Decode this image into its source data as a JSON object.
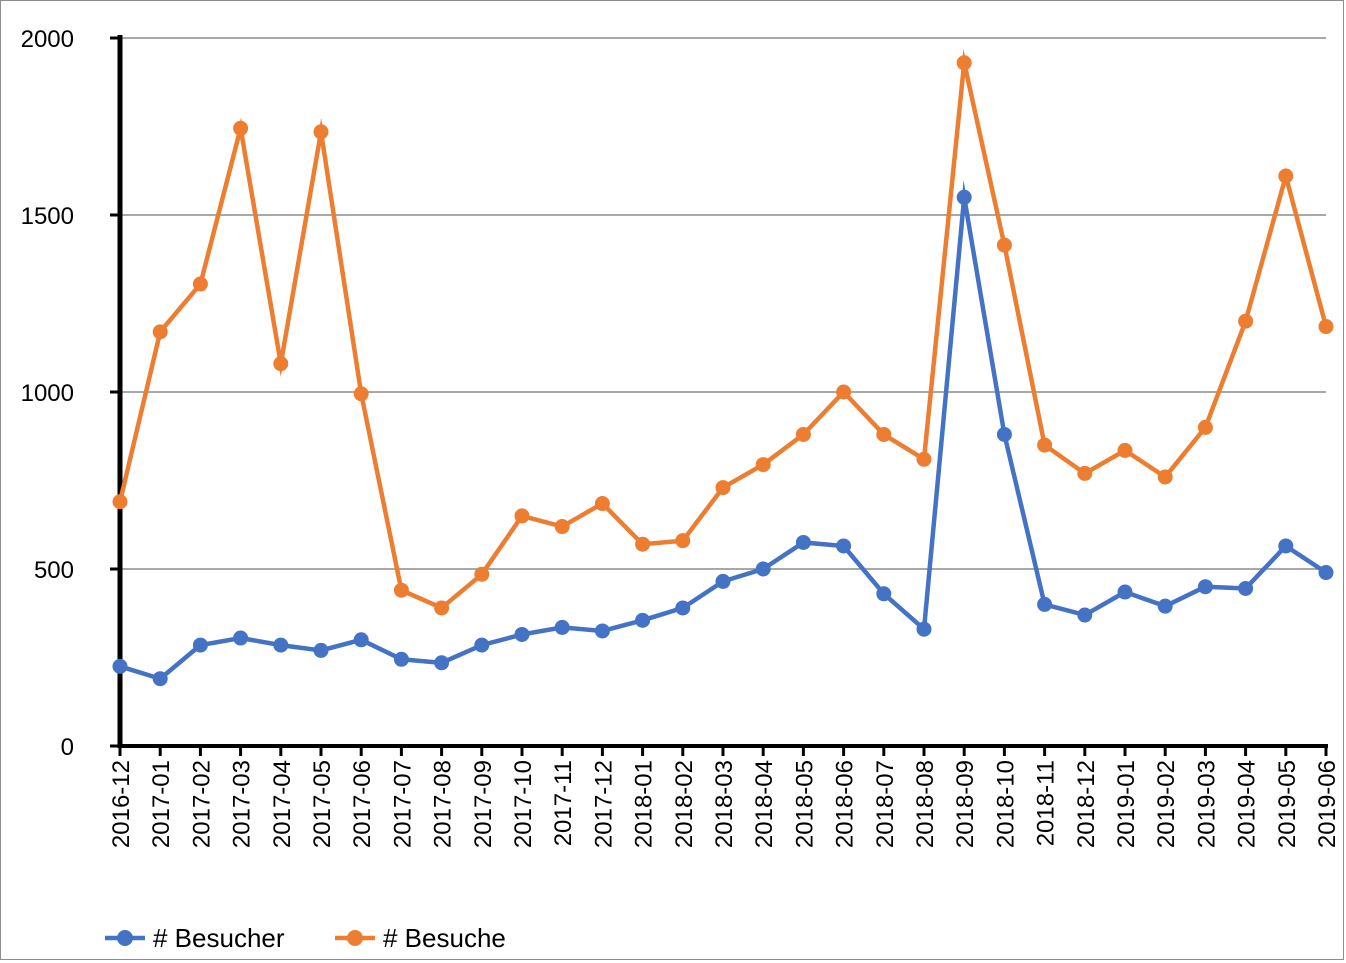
{
  "chart_data": {
    "type": "line",
    "title": "",
    "xlabel": "",
    "ylabel": "",
    "categories": [
      "2016-12",
      "2017-01",
      "2017-02",
      "2017-03",
      "2017-04",
      "2017-05",
      "2017-06",
      "2017-07",
      "2017-08",
      "2017-09",
      "2017-10",
      "2017-11",
      "2017-12",
      "2018-01",
      "2018-02",
      "2018-03",
      "2018-04",
      "2018-05",
      "2018-06",
      "2018-07",
      "2018-08",
      "2018-09",
      "2018-10",
      "2018-11",
      "2018-12",
      "2019-01",
      "2019-02",
      "2019-03",
      "2019-04",
      "2019-05",
      "2019-06"
    ],
    "ylim": [
      0,
      2000
    ],
    "yticks": [
      "0",
      "500",
      "1000",
      "1500",
      "2000"
    ],
    "grid": true,
    "legend_position": "bottom-left",
    "series": [
      {
        "name": "# Besucher",
        "color": "#4472C4",
        "values": [
          225,
          190,
          285,
          305,
          285,
          270,
          300,
          245,
          235,
          285,
          315,
          335,
          325,
          355,
          390,
          465,
          500,
          575,
          565,
          430,
          330,
          1550,
          880,
          400,
          370,
          435,
          395,
          450,
          445,
          565,
          490
        ]
      },
      {
        "name": "# Besuche",
        "color": "#ED7D31",
        "values": [
          690,
          1170,
          1305,
          1745,
          1080,
          1735,
          995,
          440,
          390,
          485,
          650,
          620,
          685,
          570,
          580,
          730,
          795,
          880,
          1000,
          880,
          810,
          1930,
          1415,
          850,
          770,
          835,
          760,
          900,
          1200,
          1610,
          1185
        ]
      }
    ]
  }
}
